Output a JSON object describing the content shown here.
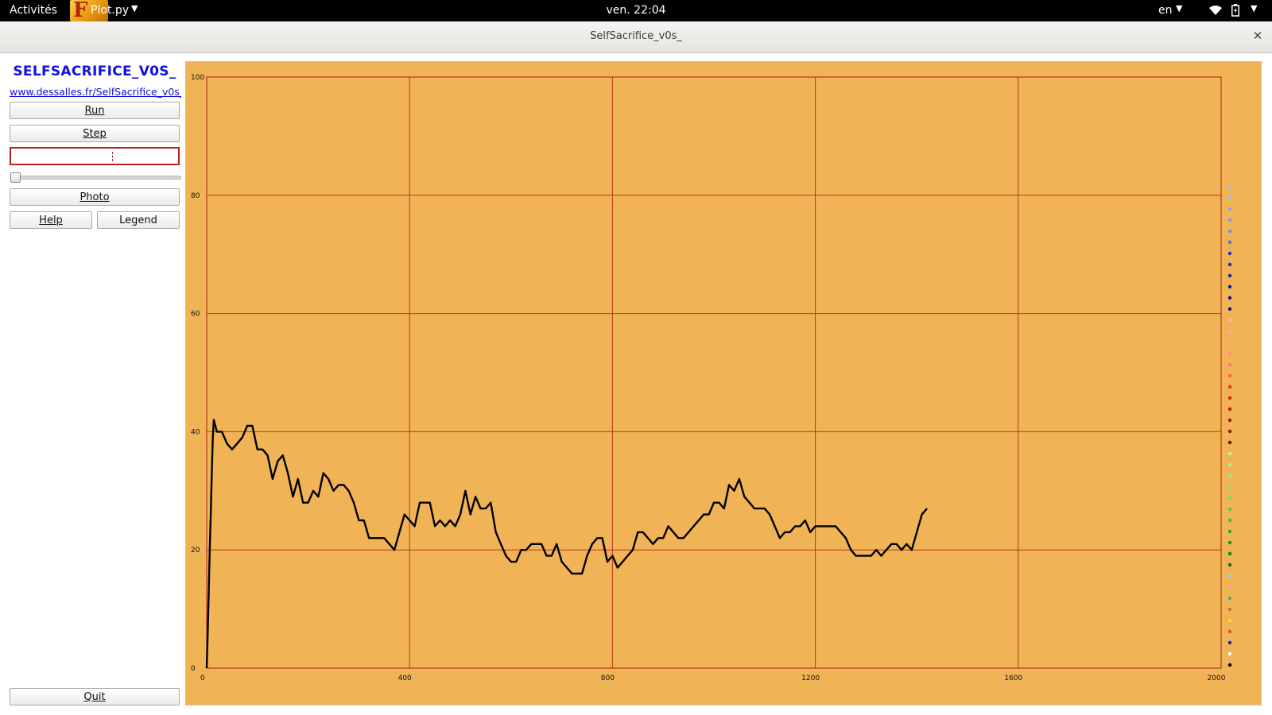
{
  "topbar": {
    "activities": "Activités",
    "app_menu": "Plot.py",
    "clock": "ven. 22:04",
    "lang": "en"
  },
  "window": {
    "title": "SelfSacrifice_v0s_"
  },
  "panel": {
    "app_title": "SELFSACRIFICE_V0S_",
    "link": "www.dessalles.fr/SelfSacrifice_v0s_",
    "run_label": "Run",
    "step_label": "Step",
    "speed_value": "",
    "photo_label": "Photo",
    "help_label": "Help",
    "legend_label": "Legend",
    "quit_label": "Quit",
    "slider_value": 0
  },
  "colors": {
    "plot_background": "#f0b355",
    "grid": "#b53a1a",
    "curve": "#000000",
    "link": "#1010e0",
    "input_border": "#b51f1f",
    "legend_dots": [
      "#9fb8f0",
      "#9fb8f0",
      "#8aa6ee",
      "#7f98ea",
      "#6f8ae8",
      "#5a70e0",
      "#1c2fd2",
      "#1228c8",
      "#0e20b0",
      "#0c1a9e",
      "#0a168c",
      "#081280",
      "#ffb6b6",
      "#ffaaaa",
      "#ff9a90",
      "#ff8a80",
      "#ff7a6a",
      "#ff5e4a",
      "#f03020",
      "#e01a10",
      "#c81010",
      "#b01010",
      "#901010",
      "#7a0c0c",
      "#b8f5b0",
      "#aaf0a0",
      "#9aea8c",
      "#88e478",
      "#6ede5e",
      "#4ad23a",
      "#2ec422",
      "#1fb01a",
      "#17981a",
      "#118016",
      "#0c6c12",
      "#b0c8f0",
      "#ff9a8a",
      "#44aa88",
      "#c87a2a",
      "#ffe030",
      "#e8502a",
      "#1228c8",
      "#ffffff",
      "#000000"
    ]
  },
  "chart_data": {
    "type": "line",
    "xlim": [
      0,
      2000
    ],
    "ylim": [
      0,
      100
    ],
    "x_ticks": [
      0,
      400,
      800,
      1200,
      1600,
      2000
    ],
    "y_ticks": [
      0,
      20,
      40,
      60,
      80,
      100
    ],
    "grid": true,
    "series": [
      {
        "x": [
          0,
          2,
          4,
          6,
          8,
          10,
          12,
          14,
          20,
          30,
          40,
          50,
          60,
          70,
          80,
          90,
          100,
          110,
          120,
          130,
          140,
          150,
          160,
          170,
          180,
          190,
          200,
          210,
          220,
          230,
          240,
          250,
          260,
          270,
          280,
          290,
          300,
          310,
          320,
          330,
          340,
          350,
          360,
          370,
          380,
          390,
          400,
          410,
          420,
          430,
          440,
          450,
          460,
          470,
          480,
          490,
          500,
          510,
          520,
          530,
          540,
          550,
          560,
          570,
          580,
          590,
          600,
          610,
          620,
          630,
          640,
          650,
          660,
          670,
          680,
          690,
          700,
          710,
          720,
          730,
          740,
          750,
          760,
          770,
          780,
          790,
          800,
          810,
          820,
          830,
          840,
          850,
          860,
          870,
          880,
          890,
          900,
          910,
          920,
          930,
          940,
          950,
          960,
          970,
          980,
          990,
          1000,
          1010,
          1020,
          1030,
          1040,
          1050,
          1060,
          1070,
          1080,
          1090,
          1100,
          1110,
          1120,
          1130,
          1140,
          1150,
          1160,
          1170,
          1180,
          1190,
          1200,
          1210,
          1220,
          1230,
          1240,
          1250,
          1260,
          1270,
          1280,
          1290,
          1300,
          1310,
          1320,
          1330,
          1340,
          1350,
          1360,
          1370,
          1380,
          1390,
          1400,
          1410,
          1420
        ],
        "y": [
          0,
          6,
          13,
          20,
          26,
          33,
          39,
          42,
          40,
          40,
          38,
          37,
          38,
          39,
          41,
          41,
          37,
          37,
          36,
          32,
          35,
          36,
          33,
          29,
          32,
          28,
          28,
          30,
          29,
          33,
          32,
          30,
          31,
          31,
          30,
          28,
          25,
          25,
          22,
          22,
          22,
          22,
          21,
          20,
          23,
          26,
          25,
          24,
          28,
          28,
          28,
          24,
          25,
          24,
          25,
          24,
          26,
          30,
          26,
          29,
          27,
          27,
          28,
          23,
          21,
          19,
          18,
          18,
          20,
          20,
          21,
          21,
          21,
          19,
          19,
          21,
          18,
          17,
          16,
          16,
          16,
          19,
          21,
          22,
          22,
          18,
          19,
          17,
          18,
          19,
          20,
          23,
          23,
          22,
          21,
          22,
          22,
          24,
          23,
          22,
          22,
          23,
          24,
          25,
          26,
          26,
          28,
          28,
          27,
          31,
          30,
          32,
          29,
          28,
          27,
          27,
          27,
          26,
          24,
          22,
          23,
          23,
          24,
          24,
          25,
          23,
          24,
          24,
          24,
          24,
          24,
          23,
          22,
          20,
          19,
          19,
          19,
          19,
          20,
          19,
          20,
          21,
          21,
          20,
          21,
          20,
          23,
          26,
          27
        ]
      }
    ]
  }
}
